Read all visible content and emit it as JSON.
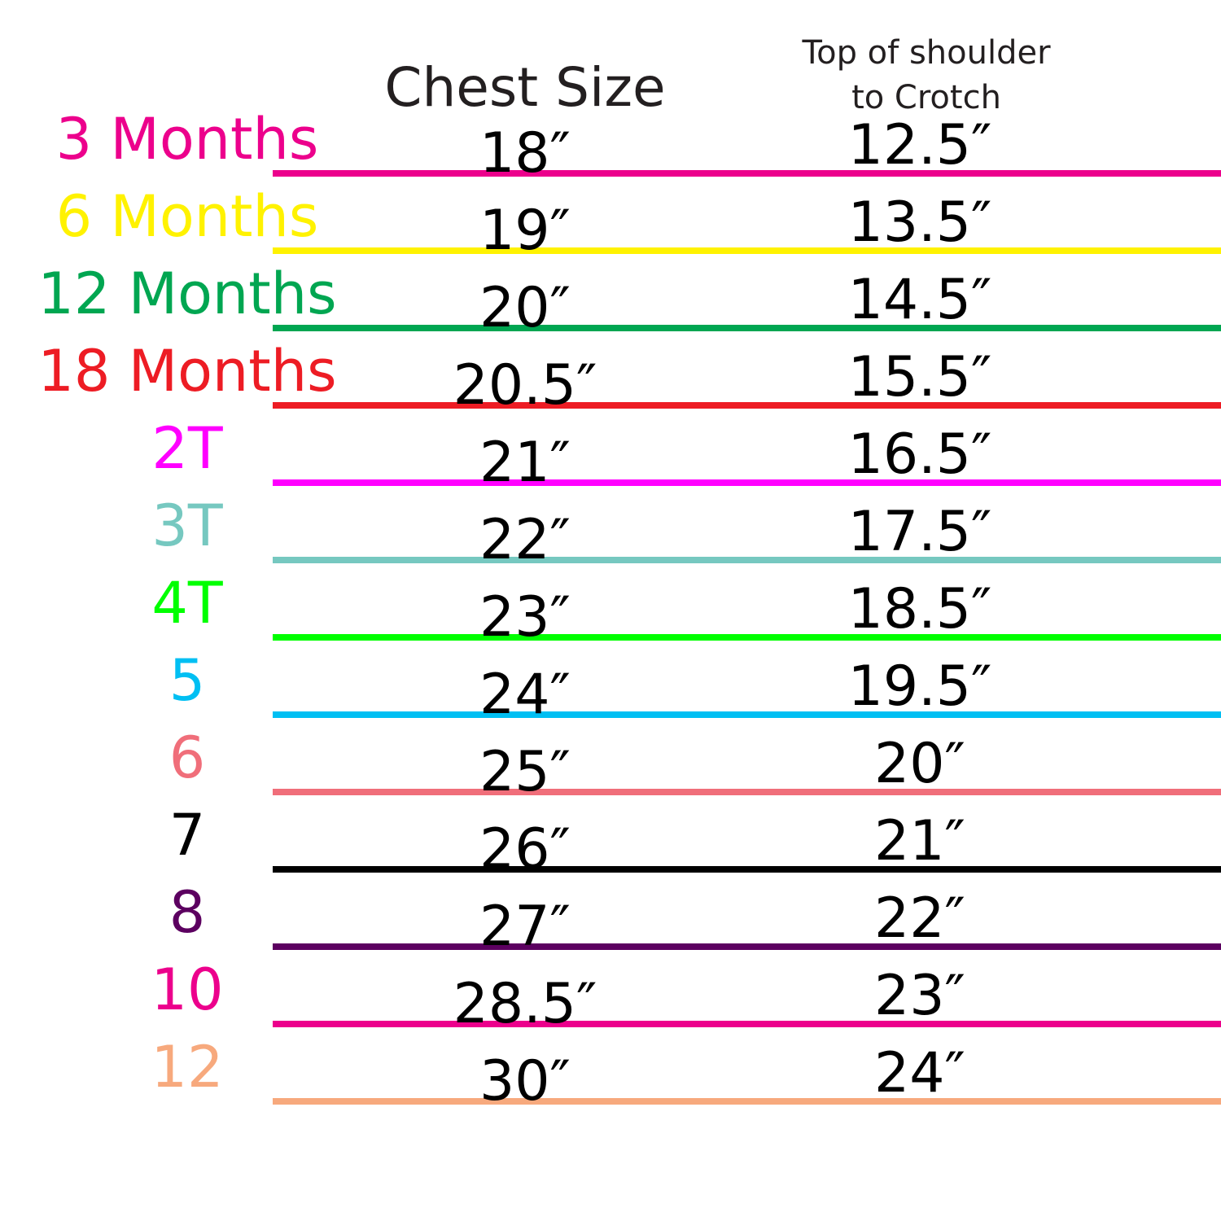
{
  "header": {
    "chest": "Chest Size",
    "length": [
      "Top of shoulder",
      "to Crotch"
    ]
  },
  "rows": [
    {
      "size": "3 Months",
      "chest": "18″",
      "length": "12.5″",
      "color": "#ec008c"
    },
    {
      "size": "6 Months",
      "chest": "19″",
      "length": "13.5″",
      "color": "#fff200"
    },
    {
      "size": "12 Months",
      "chest": "20″",
      "length": "14.5″",
      "color": "#00a651"
    },
    {
      "size": "18 Months",
      "chest": "20.5″",
      "length": "15.5″",
      "color": "#ed1c24"
    },
    {
      "size": "2T",
      "chest": "21″",
      "length": "16.5″",
      "color": "#ff00ff"
    },
    {
      "size": "3T",
      "chest": "22″",
      "length": "17.5″",
      "color": "#76c8c0"
    },
    {
      "size": "4T",
      "chest": "23″",
      "length": "18.5″",
      "color": "#00ff00"
    },
    {
      "size": "5",
      "chest": "24″",
      "length": "19.5″",
      "color": "#00bff3"
    },
    {
      "size": "6",
      "chest": "25″",
      "length": "20″",
      "color": "#f06e7a"
    },
    {
      "size": "7",
      "chest": "26″",
      "length": "21″",
      "color": "#000000"
    },
    {
      "size": "8",
      "chest": "27″",
      "length": "22″",
      "color": "#5c0060"
    },
    {
      "size": "10",
      "chest": "28.5″",
      "length": "23″",
      "color": "#ec008c"
    },
    {
      "size": "12",
      "chest": "30″",
      "length": "24″",
      "color": "#f7a97d"
    }
  ]
}
